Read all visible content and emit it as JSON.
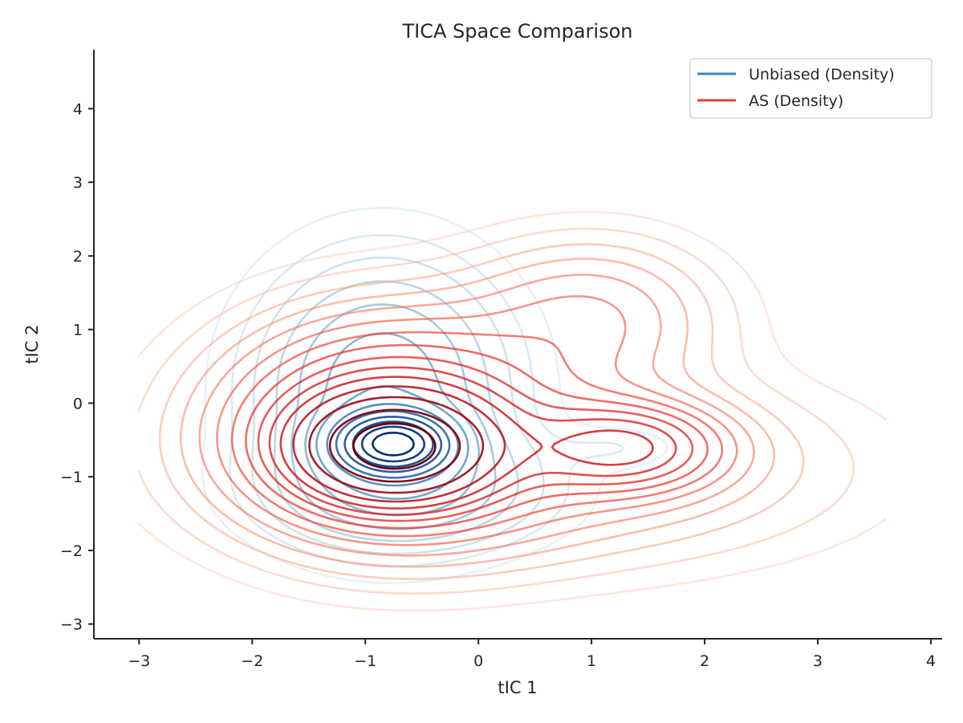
{
  "chart_data": {
    "type": "contour",
    "title": "TICA Space Comparison",
    "xlabel": "tIC 1",
    "ylabel": "tIC 2",
    "xlim": [
      -3.4,
      4.1
    ],
    "ylim": [
      -3.2,
      4.8
    ],
    "xticks": [
      -3,
      -2,
      -1,
      0,
      1,
      2,
      3,
      4
    ],
    "yticks": [
      -3,
      -2,
      -1,
      0,
      1,
      2,
      3,
      4
    ],
    "xtick_labels": [
      "−3",
      "−2",
      "−1",
      "0",
      "1",
      "2",
      "3",
      "4"
    ],
    "ytick_labels": [
      "−3",
      "−2",
      "−1",
      "0",
      "1",
      "2",
      "3",
      "4"
    ],
    "grid": false,
    "legend_position": "top-right",
    "series": [
      {
        "name": "Unbiased (Density)",
        "color": "#3a87c0",
        "colormap": "Blues",
        "components": [
          {
            "mx": -0.75,
            "my": -0.55,
            "sx": 0.32,
            "sy": 0.26,
            "w": 1.0
          },
          {
            "mx": -0.85,
            "my": 0.2,
            "sx": 0.7,
            "sy": 1.1,
            "w": 0.32
          },
          {
            "mx": -0.6,
            "my": -1.2,
            "sx": 0.8,
            "sy": 0.5,
            "w": 0.2
          },
          {
            "mx": 1.25,
            "my": -0.6,
            "sx": 0.38,
            "sy": 0.2,
            "w": 0.045
          }
        ],
        "levels": [
          0.02,
          0.04,
          0.065,
          0.1,
          0.14,
          0.19,
          0.25,
          0.33,
          0.42,
          0.52,
          0.63,
          0.75,
          0.88
        ]
      },
      {
        "name": "AS (Density)",
        "color": "#e5402f",
        "colormap": "Reds",
        "components": [
          {
            "mx": -0.75,
            "my": -0.6,
            "sx": 0.5,
            "sy": 0.42,
            "w": 1.0
          },
          {
            "mx": -0.8,
            "my": -0.3,
            "sx": 0.95,
            "sy": 0.95,
            "w": 0.35
          },
          {
            "mx": 1.3,
            "my": -0.6,
            "sx": 0.55,
            "sy": 0.38,
            "w": 0.3
          },
          {
            "mx": 1.0,
            "my": 1.2,
            "sx": 0.75,
            "sy": 0.7,
            "w": 0.12
          },
          {
            "mx": 0.6,
            "my": -0.9,
            "sx": 1.7,
            "sy": 0.85,
            "w": 0.11
          }
        ],
        "levels": [
          0.012,
          0.022,
          0.035,
          0.05,
          0.068,
          0.09,
          0.115,
          0.145,
          0.18,
          0.22,
          0.27,
          0.34,
          0.45,
          0.62,
          0.82
        ]
      }
    ]
  }
}
